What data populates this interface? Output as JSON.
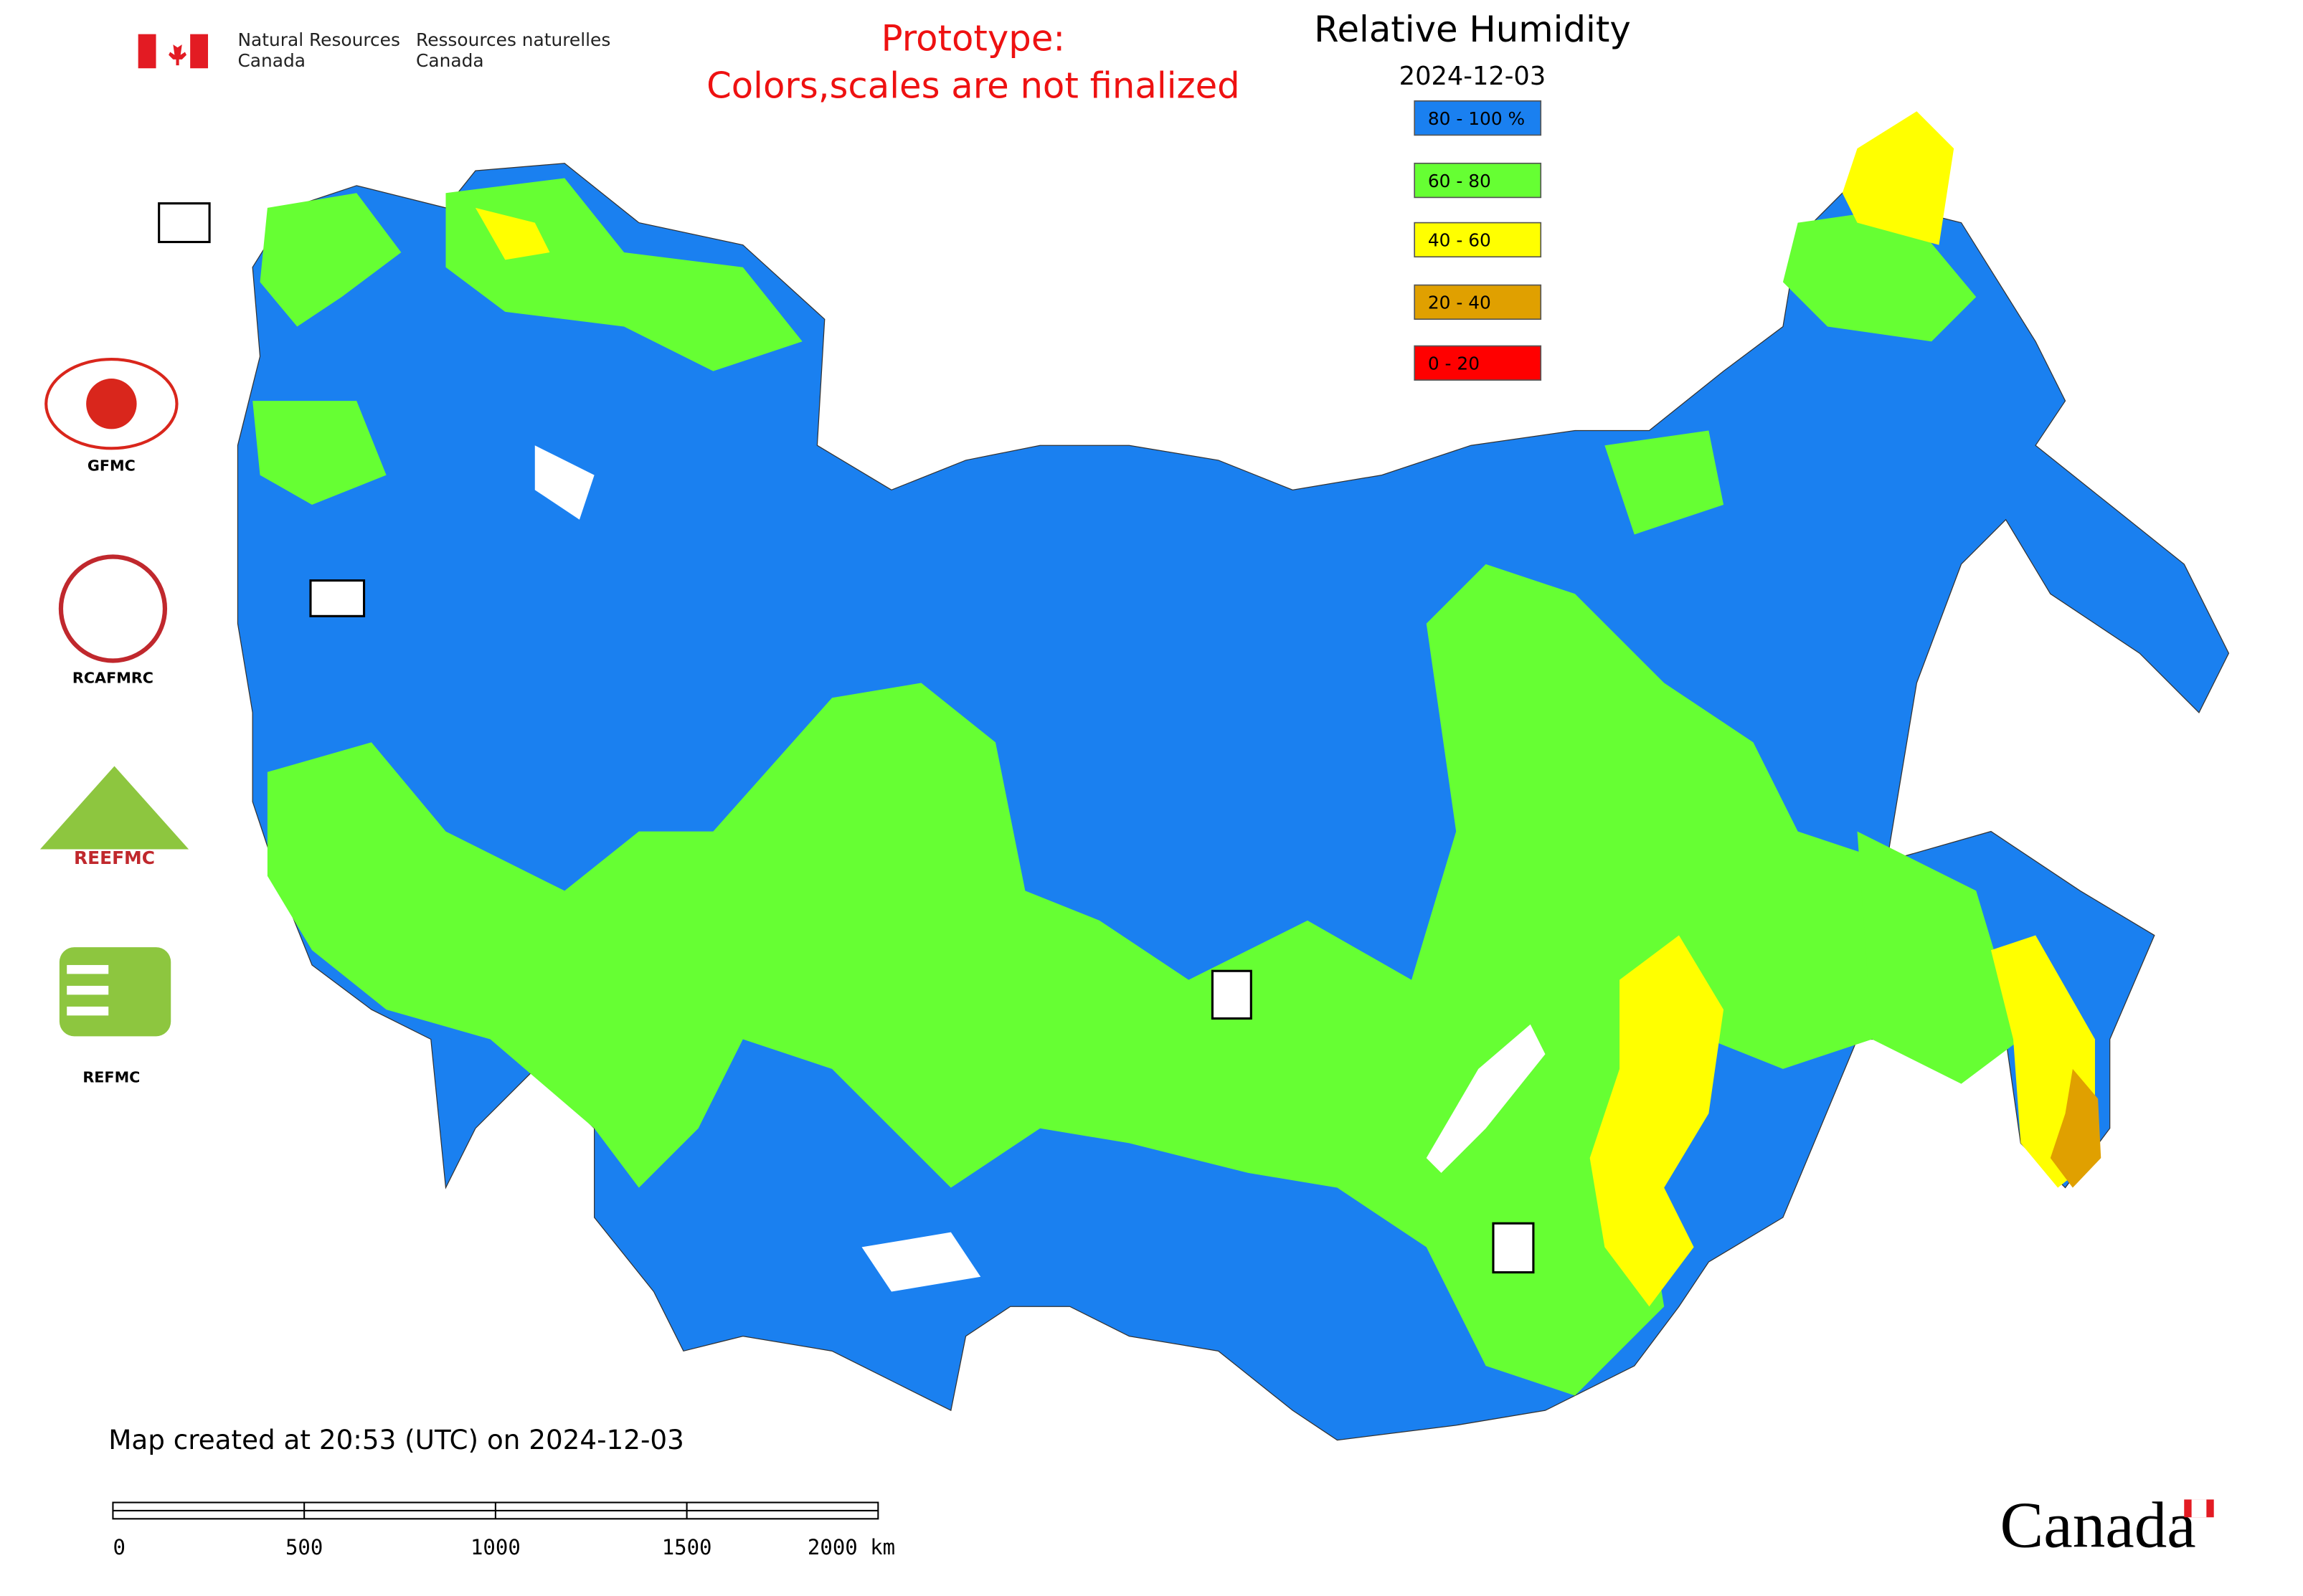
{
  "header": {
    "agency_en_1": "Natural Resources",
    "agency_en_2": "Canada",
    "agency_fr_1": "Ressources naturelles",
    "agency_fr_2": "Canada",
    "notice_1": "Prototype:",
    "notice_2": "Colors,scales are not finalized"
  },
  "legend": {
    "title": "Relative Humidity",
    "date": "2024-12-03",
    "items": [
      {
        "label": "80 - 100 %",
        "color": "#1a80f0"
      },
      {
        "label": "60 - 80",
        "color": "#66ff33"
      },
      {
        "label": "40 - 60",
        "color": "#ffff00"
      },
      {
        "label": "20 - 40",
        "color": "#e0a000"
      },
      {
        "label": "0 - 20",
        "color": "#ff0000"
      }
    ]
  },
  "logos": {
    "gfmc": "GFMC",
    "rcafmrc": "RCAFMRC",
    "reefmc": "REEFMC",
    "refmc": "REFMC"
  },
  "footer": {
    "created": "Map created at 20:53 (UTC) on 2024-12-03",
    "scale_labels": [
      "0",
      "500",
      "1000",
      "1500",
      "2000 km"
    ],
    "wordmark": "Canada"
  }
}
